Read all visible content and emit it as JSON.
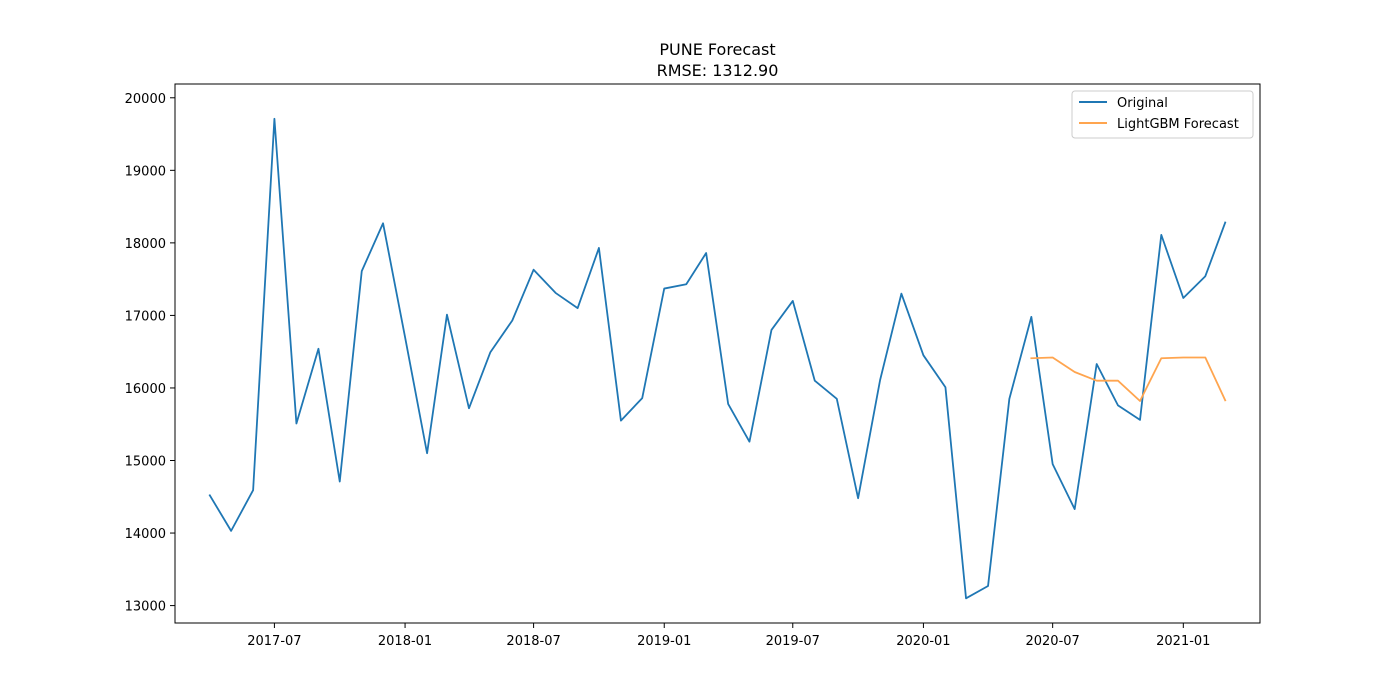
{
  "chart_data": {
    "type": "line",
    "title": "PUNE Forecast",
    "subtitle": "RMSE: 1312.90",
    "xlabel": "",
    "ylabel": "",
    "xlim": [
      "2017-02-11",
      "2021-04-19"
    ],
    "ylim": [
      12760,
      20190
    ],
    "x_ticks": [
      "2017-07",
      "2018-01",
      "2018-07",
      "2019-01",
      "2019-07",
      "2020-01",
      "2020-07",
      "2021-01"
    ],
    "y_ticks": [
      13000,
      14000,
      15000,
      16000,
      17000,
      18000,
      19000,
      20000
    ],
    "grid": false,
    "legend_position": "top-right",
    "series": [
      {
        "name": "Original",
        "color": "#1f77b4",
        "x": [
          "2017-04",
          "2017-05",
          "2017-06",
          "2017-07",
          "2017-08",
          "2017-09",
          "2017-10",
          "2017-11",
          "2017-12",
          "2018-01",
          "2018-02",
          "2018-03",
          "2018-04",
          "2018-05",
          "2018-06",
          "2018-07",
          "2018-08",
          "2018-09",
          "2018-10",
          "2018-11",
          "2018-12",
          "2019-01",
          "2019-02",
          "2019-03",
          "2019-04",
          "2019-05",
          "2019-06",
          "2019-07",
          "2019-08",
          "2019-09",
          "2019-10",
          "2019-11",
          "2019-12",
          "2020-01",
          "2020-02",
          "2020-03",
          "2020-04",
          "2020-05",
          "2020-06",
          "2020-07",
          "2020-08",
          "2020-09",
          "2020-10",
          "2020-11",
          "2020-12",
          "2021-01",
          "2021-02",
          "2021-03"
        ],
        "y": [
          14520,
          14030,
          14590,
          19710,
          15510,
          16540,
          14710,
          17610,
          18270,
          16700,
          15100,
          17010,
          15720,
          16490,
          16930,
          17630,
          17310,
          17100,
          17930,
          15550,
          15860,
          17370,
          17430,
          17860,
          15780,
          15260,
          16800,
          17200,
          16100,
          15850,
          14480,
          16110,
          17300,
          16450,
          16010,
          13100,
          13270,
          15850,
          16980,
          14950,
          14330,
          16330,
          15760,
          15560,
          18110,
          17240,
          17540,
          18280
        ]
      },
      {
        "name": "LightGBM Forecast",
        "color": "#ffa54f",
        "x": [
          "2020-06",
          "2020-07",
          "2020-08",
          "2020-09",
          "2020-10",
          "2020-11",
          "2020-12",
          "2021-01",
          "2021-02",
          "2021-03"
        ],
        "y": [
          16410,
          16420,
          16220,
          16100,
          16100,
          15820,
          16410,
          16420,
          16420,
          15830
        ]
      }
    ]
  }
}
